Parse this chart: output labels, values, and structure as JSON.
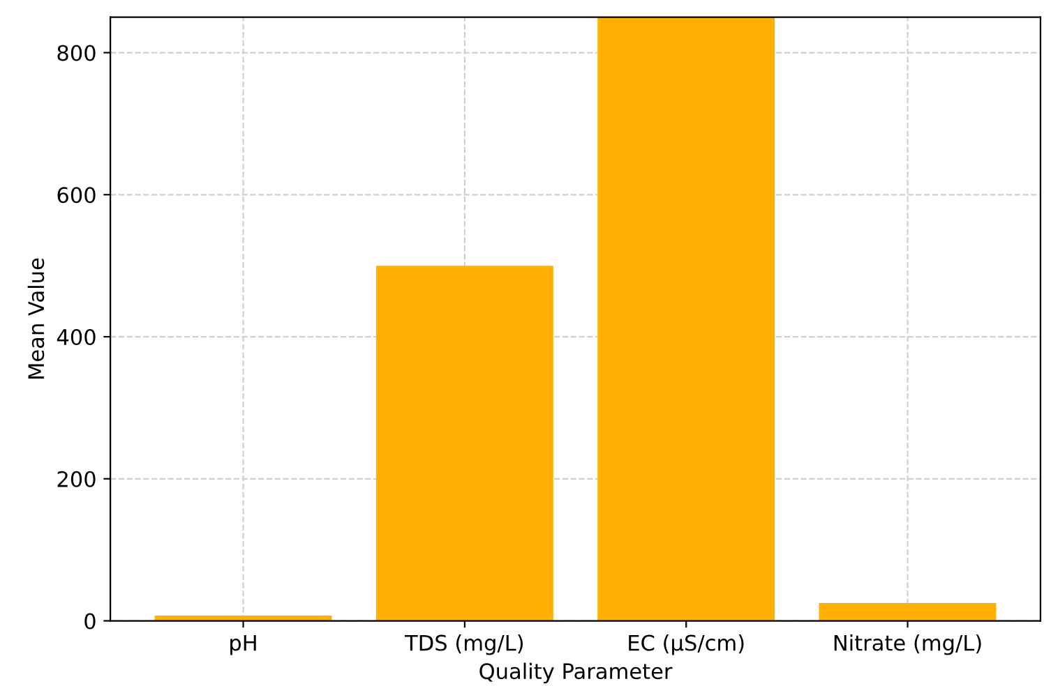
{
  "chart_data": {
    "type": "bar",
    "xlabel": "Quality Parameter",
    "ylabel": "Mean Value",
    "categories": [
      "pH",
      "TDS (mg/L)",
      "EC (µS/cm)",
      "Nitrate (mg/L)"
    ],
    "values": [
      7.5,
      500,
      850,
      25
    ],
    "color": "#ffb000",
    "ylim": [
      0,
      850
    ],
    "yticks": [
      0,
      200,
      400,
      600,
      800
    ],
    "grid": true
  }
}
